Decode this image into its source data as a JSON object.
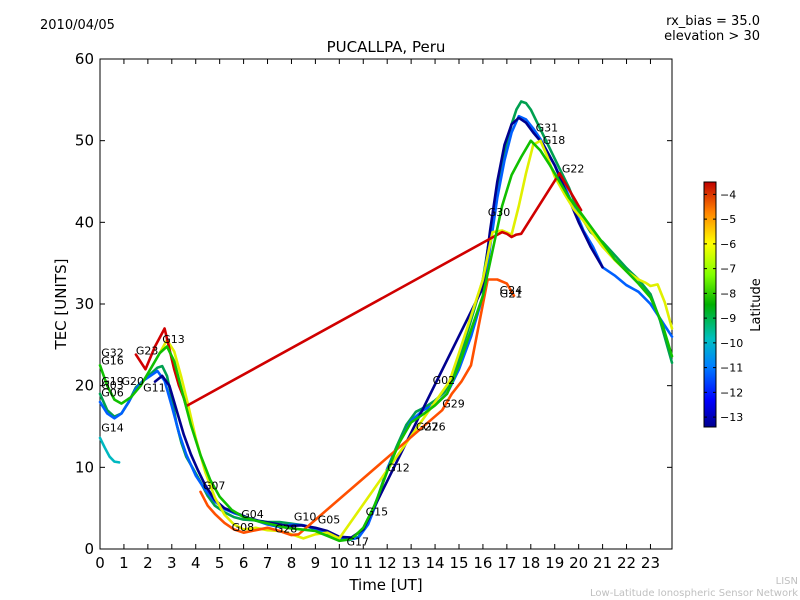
{
  "header": {
    "date": "2010/04/05",
    "rx_bias": "rx_bias = 35.0",
    "elevation": "elevation > 30"
  },
  "footer": {
    "line1": "LISN",
    "line2": "Low-Latitude Ionospheric Sensor Network"
  },
  "chart_data": {
    "type": "line",
    "title": "PUCALLPA, Peru",
    "xlabel": "Time [UT]",
    "ylabel": "TEC [UNITS]",
    "xlim": [
      0,
      23.9
    ],
    "ylim": [
      0,
      60
    ],
    "xticks": [
      0,
      1,
      2,
      3,
      4,
      5,
      6,
      7,
      8,
      9,
      10,
      11,
      12,
      13,
      14,
      15,
      16,
      17,
      18,
      19,
      20,
      21,
      22,
      23
    ],
    "yticks": [
      0,
      10,
      20,
      30,
      40,
      50,
      60
    ],
    "grid": false,
    "colorbar": {
      "label": "Latitude",
      "range": [
        -13.4,
        -3.5
      ],
      "ticks": [
        -13,
        -12,
        -11,
        -10,
        -9,
        -8,
        -7,
        -6,
        -5,
        -4
      ]
    },
    "colors": {
      "lat_-13": "#00008f",
      "lat_-12": "#0060ff",
      "lat_-11": "#00b8c0",
      "lat_-10": "#00a050",
      "lat_-9": "#10c000",
      "lat_-8": "#60ee00",
      "lat_-7": "#e0f000",
      "lat_-6": "#ffb000",
      "lat_-5": "#ff5000",
      "lat_-4": "#d00000"
    },
    "series": [
      {
        "lat": -10,
        "x": [
          0,
          0.3,
          0.6,
          0.9,
          1.2,
          1.5,
          1.8,
          2.1,
          2.4,
          2.6,
          2.8,
          3.0,
          3.2,
          3.4,
          3.6,
          3.9,
          4.2,
          4.5,
          4.8,
          5.2,
          5.6,
          6.0,
          6.5,
          7.0,
          7.5,
          8.0,
          8.5,
          9.0,
          9.5,
          10.0,
          10.4,
          10.8,
          11.2,
          11.6,
          12.0,
          12.4,
          12.8,
          13.2,
          13.6,
          14.0,
          14.4,
          14.8,
          15.2,
          15.6,
          16.0,
          16.3,
          16.6,
          16.9,
          17.2,
          17.4,
          17.6,
          17.8,
          18.0,
          18.3,
          18.6,
          18.9,
          19.2,
          19.6,
          20.0,
          20.5,
          21.0,
          21.5,
          22.0,
          22.5,
          23.0,
          23.4,
          23.9
        ],
        "y": [
          19,
          17,
          16.2,
          16.6,
          18,
          19.8,
          20.6,
          21.4,
          22.2,
          22.4,
          21.2,
          18.4,
          15.3,
          13,
          11.3,
          9.8,
          8.2,
          6.5,
          5.3,
          4.5,
          3.9,
          3.6,
          3.5,
          3.3,
          3.3,
          3.1,
          2.9,
          2.4,
          1.8,
          1.3,
          1.1,
          1.5,
          3.4,
          6.3,
          9.8,
          12.6,
          15.2,
          16.8,
          17.4,
          18.2,
          19.2,
          21.5,
          25.1,
          29,
          33,
          38.5,
          44,
          48.5,
          52,
          53.8,
          54.8,
          54.6,
          53.8,
          52,
          50.2,
          48.4,
          46.6,
          44.2,
          41.2,
          38.8,
          37.6,
          36,
          34.4,
          33,
          31.2,
          28,
          22.8
        ]
      },
      {
        "lat": -12,
        "x": [
          0,
          0.3,
          0.6,
          0.9,
          1.2,
          1.5,
          1.8,
          2.1,
          2.4,
          2.7,
          3.0,
          3.3,
          3.6,
          4.0,
          4.4,
          4.8,
          5.2,
          5.6,
          6.0,
          6.5,
          7.0,
          7.5,
          8.0,
          8.5,
          9.0,
          9.5,
          10.0,
          10.4,
          10.8,
          11.2,
          11.6,
          12.0,
          12.5,
          13.0,
          13.5,
          14.0,
          14.5,
          15.0,
          15.5,
          16.0,
          16.3,
          16.6,
          16.9,
          17.2,
          17.5,
          17.8,
          18.1,
          18.4,
          18.7,
          19.0,
          19.4,
          19.8,
          20.2,
          20.6,
          21.0,
          21.5,
          22.0,
          22.5,
          23.0,
          23.5,
          23.9
        ],
        "y": [
          18,
          16.6,
          16,
          16.6,
          18,
          19.6,
          20.6,
          21.2,
          21.8,
          20.6,
          17.5,
          14.2,
          11.6,
          9,
          7.2,
          5.8,
          4.9,
          4.4,
          4,
          3.5,
          3,
          2.7,
          3,
          2.9,
          2.5,
          2,
          1.4,
          1.1,
          1.4,
          3,
          6,
          9.8,
          13,
          15.7,
          17,
          17.7,
          19,
          22,
          26,
          31,
          37,
          43,
          47.6,
          51,
          53,
          52.6,
          51.5,
          50.2,
          48.6,
          47,
          44.5,
          41.8,
          39,
          37,
          34.5,
          33.5,
          32.3,
          31.5,
          30,
          27.8,
          26
        ]
      },
      {
        "lat": -13,
        "x": [
          2.3,
          2.6,
          2.9,
          3.2,
          3.5,
          3.8,
          4.1,
          4.4,
          4.8,
          5.2,
          5.7,
          6.2,
          6.7,
          7.3,
          7.9,
          8.4,
          9.0,
          9.5,
          10.0,
          10.5,
          11.0,
          16.0,
          16.3,
          16.6,
          16.9,
          17.2,
          17.5,
          17.8,
          18.1,
          18.5,
          19.0,
          19.5,
          20.0,
          20.5,
          21.0
        ],
        "y": [
          20.5,
          21.2,
          20,
          17,
          14,
          11.6,
          9.6,
          7.8,
          6,
          5,
          4.4,
          3.8,
          3.4,
          3.1,
          2.8,
          2.9,
          2.6,
          2.2,
          1.5,
          1.4,
          2.4,
          32,
          39,
          45,
          49.5,
          52,
          52.8,
          52.2,
          51,
          49.6,
          47,
          43.5,
          40,
          37,
          34.5
        ]
      },
      {
        "lat": -7,
        "x": [
          2.5,
          2.8,
          3.1,
          3.4,
          3.7,
          4.0,
          4.4,
          4.8,
          5.2,
          5.6,
          6.0,
          6.5,
          7.0,
          7.5,
          8.0,
          8.5,
          9.0,
          9.5,
          10.0,
          14.6,
          15.0,
          15.5,
          16.0,
          16.4,
          16.8,
          17.2,
          17.5,
          17.8,
          18.1,
          18.4,
          18.7,
          19.0,
          19.4,
          19.8,
          20.2,
          20.6,
          21.0,
          21.5,
          22.0,
          22.5,
          22.8,
          23.0,
          23.3,
          23.6,
          23.9
        ],
        "y": [
          24,
          25.6,
          24.2,
          21,
          17.4,
          13.6,
          9.4,
          6.3,
          4.2,
          3,
          2.4,
          2.6,
          2.3,
          2.2,
          1.8,
          1.3,
          1.8,
          2,
          1.3,
          20.5,
          24,
          28.5,
          33,
          38.8,
          39,
          38.5,
          42,
          46,
          49.5,
          50,
          48,
          45.6,
          43.5,
          41.6,
          40.2,
          38.6,
          37,
          35.4,
          34,
          33,
          32.6,
          32.2,
          32.4,
          30.2,
          27
        ]
      },
      {
        "lat": -5,
        "x": [
          4.2,
          4.5,
          4.8,
          5.2,
          5.6,
          6.0,
          6.5,
          7.0,
          7.5,
          8.0,
          8.3,
          14.3,
          14.7,
          15.1,
          15.5,
          16.2,
          16.6,
          17.0,
          17.3
        ],
        "y": [
          7,
          5.3,
          4.3,
          3.2,
          2.4,
          2,
          2.3,
          2.6,
          2.2,
          1.7,
          1.8,
          17,
          19,
          20.5,
          22.5,
          33,
          33,
          32.5,
          31
        ]
      },
      {
        "lat": -4,
        "x": [
          1.5,
          1.9,
          2.3,
          2.7,
          2.9,
          3.1,
          3.3,
          3.5,
          3.6,
          16.8,
          17.0,
          17.2,
          17.4,
          17.6,
          19.2,
          19.5,
          19.8,
          20.1
        ],
        "y": [
          23.8,
          22,
          24.8,
          27,
          24.5,
          22,
          20,
          18.5,
          17.5,
          38.8,
          38.6,
          38.2,
          38.5,
          38.6,
          46,
          44.5,
          43,
          41.5
        ]
      },
      {
        "lat": -9,
        "x": [
          0,
          0.3,
          0.6,
          0.9,
          1.3,
          1.7,
          2.1,
          2.5,
          2.8,
          3.1,
          3.4,
          3.8,
          4.2,
          4.6,
          5.0,
          5.5,
          6.0,
          6.6,
          7.2,
          7.8,
          8.4,
          9.0,
          9.5,
          10.0,
          10.5,
          11.0,
          11.5,
          12.0,
          12.5,
          13.0,
          13.5,
          14.0,
          14.5,
          15.0,
          15.5,
          16.0,
          16.4,
          16.8,
          17.2,
          17.6,
          18.0,
          18.4,
          18.8,
          19.2,
          19.6,
          20.0,
          20.5,
          21.0,
          21.5,
          22.0,
          22.5,
          23.0,
          23.5,
          23.9
        ],
        "y": [
          22.5,
          20,
          18.3,
          17.8,
          18.6,
          20,
          22,
          24,
          24.8,
          23,
          19.6,
          15.2,
          11.5,
          8.5,
          6.4,
          4.8,
          3.9,
          3.4,
          3,
          2.6,
          2.4,
          2.2,
          1.6,
          1,
          1.2,
          2.6,
          5.5,
          9.5,
          13,
          15.5,
          16.5,
          17.6,
          19,
          22.5,
          26.8,
          31,
          36.5,
          42,
          45.8,
          48,
          50,
          48.8,
          47,
          45,
          43,
          41.5,
          39.5,
          37.5,
          35.5,
          34,
          32.5,
          30.8,
          27.5,
          23.6
        ]
      },
      {
        "lat": -11,
        "x": [
          0,
          0.2,
          0.4,
          0.6,
          0.8
        ],
        "y": [
          13.6,
          12.4,
          11.3,
          10.7,
          10.6
        ]
      }
    ],
    "satellite_labels": [
      {
        "text": "G32",
        "x": 0.05,
        "y": 23.6
      },
      {
        "text": "G16",
        "x": 0.05,
        "y": 22.6
      },
      {
        "text": "G23",
        "x": 1.5,
        "y": 23.8
      },
      {
        "text": "G13",
        "x": 2.6,
        "y": 25.2
      },
      {
        "text": "G19",
        "x": 0.05,
        "y": 20.1
      },
      {
        "text": "G20",
        "x": 0.9,
        "y": 20.1
      },
      {
        "text": "G03",
        "x": 0.05,
        "y": 19.6
      },
      {
        "text": "G06",
        "x": 0.05,
        "y": 18.7
      },
      {
        "text": "G11",
        "x": 1.8,
        "y": 19.3
      },
      {
        "text": "G14",
        "x": 0.05,
        "y": 14.4
      },
      {
        "text": "G07",
        "x": 4.3,
        "y": 7.3
      },
      {
        "text": "G04",
        "x": 5.9,
        "y": 3.8
      },
      {
        "text": "G08",
        "x": 5.5,
        "y": 2.2
      },
      {
        "text": "G28",
        "x": 7.3,
        "y": 2
      },
      {
        "text": "G10",
        "x": 8.1,
        "y": 3.5
      },
      {
        "text": "G05",
        "x": 9.1,
        "y": 3.1
      },
      {
        "text": "G17",
        "x": 10.3,
        "y": 0.4
      },
      {
        "text": "G15",
        "x": 11.1,
        "y": 4.1
      },
      {
        "text": "G12",
        "x": 12,
        "y": 9.5
      },
      {
        "text": "G02",
        "x": 13.9,
        "y": 20.2
      },
      {
        "text": "G29",
        "x": 14.3,
        "y": 17.3
      },
      {
        "text": "G27",
        "x": 13.2,
        "y": 14.5
      },
      {
        "text": "G26",
        "x": 13.5,
        "y": 14.5
      },
      {
        "text": "G30",
        "x": 16.2,
        "y": 40.8
      },
      {
        "text": "G24",
        "x": 16.7,
        "y": 31.2
      },
      {
        "text": "G21",
        "x": 16.7,
        "y": 30.8
      },
      {
        "text": "G31",
        "x": 18.2,
        "y": 51.1
      },
      {
        "text": "G18",
        "x": 18.5,
        "y": 49.6
      },
      {
        "text": "G22",
        "x": 19.3,
        "y": 46.1
      }
    ]
  }
}
